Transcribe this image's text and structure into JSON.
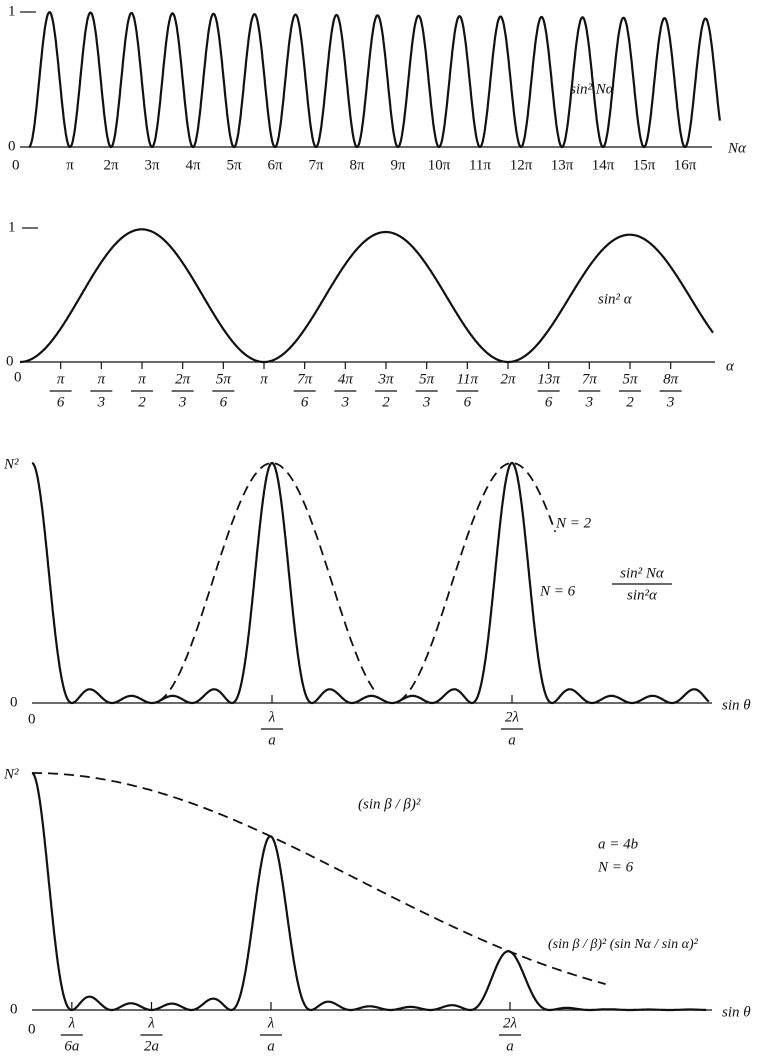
{
  "panels": [
    {
      "y_labels": [
        "1",
        "0"
      ],
      "x_origin": "0",
      "x_ticks": [
        "π",
        "2π",
        "3π",
        "4π",
        "5π",
        "6π",
        "7π",
        "8π",
        "9π",
        "10π",
        "11π",
        "12π",
        "13π",
        "14π",
        "15π",
        "16π"
      ],
      "x_axis_label": "Nα",
      "curve_label": "sin² Nα"
    },
    {
      "y_labels": [
        "1",
        "0"
      ],
      "x_origin": "0",
      "x_ticks": [
        {
          "num": "π",
          "den": "6"
        },
        {
          "num": "π",
          "den": "3"
        },
        {
          "num": "π",
          "den": "2"
        },
        {
          "num": "2π",
          "den": "3"
        },
        {
          "num": "5π",
          "den": "6"
        },
        {
          "num": "π",
          "den": ""
        },
        {
          "num": "7π",
          "den": "6"
        },
        {
          "num": "4π",
          "den": "3"
        },
        {
          "num": "3π",
          "den": "2"
        },
        {
          "num": "5π",
          "den": "3"
        },
        {
          "num": "11π",
          "den": "6"
        },
        {
          "num": "2π",
          "den": ""
        },
        {
          "num": "13π",
          "den": "6"
        },
        {
          "num": "7π",
          "den": "3"
        },
        {
          "num": "5π",
          "den": "2"
        },
        {
          "num": "8π",
          "den": "3"
        }
      ],
      "x_axis_label": "α",
      "curve_label": "sin² α"
    },
    {
      "y_labels": [
        "N²",
        "0"
      ],
      "x_origin": "0",
      "x_ticks": [
        {
          "num": "λ",
          "den": "a"
        },
        {
          "num": "2λ",
          "den": "a"
        }
      ],
      "x_axis_label": "sin θ",
      "dashed_label": "N = 2",
      "curve_label": "N = 6",
      "formula": {
        "num": "sin² Nα",
        "den": "sin²α"
      }
    },
    {
      "y_labels": [
        "N²",
        "0"
      ],
      "x_origin": "0",
      "x_ticks": [
        {
          "num": "λ",
          "den": "6a"
        },
        {
          "num": "λ",
          "den": "2a"
        },
        {
          "num": "λ",
          "den": "a"
        },
        {
          "num": "2λ",
          "den": "a"
        }
      ],
      "x_axis_label": "sin θ",
      "envelope_label": "(sin β / β)²",
      "params": [
        "a = 4b",
        "N = 6"
      ],
      "formula": "(sin β / β)² (sin Nα / sin α)²"
    }
  ]
}
